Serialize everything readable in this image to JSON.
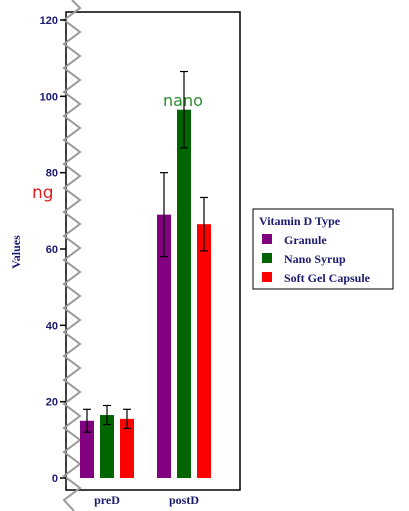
{
  "chart_data": {
    "type": "bar",
    "categories": [
      "preD",
      "postD"
    ],
    "series": [
      {
        "name": "Granule",
        "color": "#800080",
        "values": [
          15,
          69
        ],
        "errors": [
          3,
          11
        ]
      },
      {
        "name": "Nano Syrup",
        "color": "#006400",
        "values": [
          16.5,
          96.5
        ],
        "errors": [
          2.5,
          10
        ]
      },
      {
        "name": "Soft Gel Capsule",
        "color": "#ff0000",
        "values": [
          15.5,
          66.5
        ],
        "errors": [
          2.5,
          7
        ]
      }
    ],
    "ylabel": "Values",
    "ylim": [
      0,
      125
    ],
    "yticks": [
      0,
      20,
      40,
      60,
      80,
      100,
      120
    ],
    "legend": {
      "title": "Vitamin D Type",
      "placement": "right"
    },
    "annotations": [
      {
        "text": "nano",
        "color": "#2e8b2e"
      },
      {
        "text": "ng",
        "color": "#e02020"
      }
    ]
  }
}
